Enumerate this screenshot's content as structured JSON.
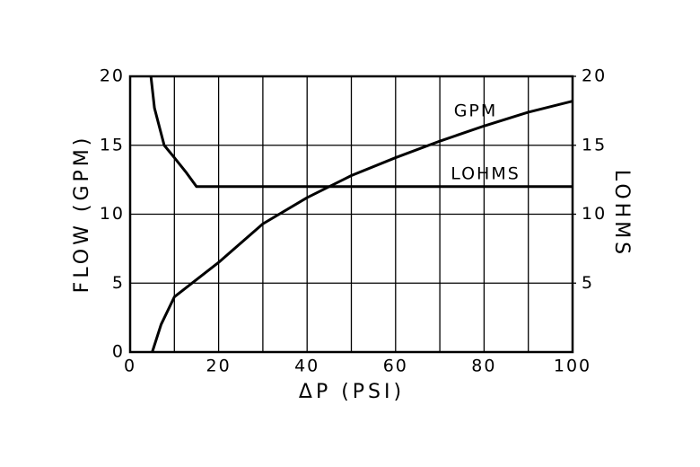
{
  "chart_data": {
    "type": "line",
    "x_label": "ΔP (PSI)",
    "y_label": "FLOW (GPM)",
    "y2_label": "LOHMS",
    "xlim": [
      0,
      100
    ],
    "xticks": [
      0,
      20,
      40,
      60,
      80,
      100
    ],
    "x_minor_grid": [
      10,
      30,
      50,
      70,
      90
    ],
    "ylim": [
      0,
      20
    ],
    "yticks": [
      0,
      5,
      10,
      15,
      20
    ],
    "y2lim": [
      0,
      20
    ],
    "y2ticks": [
      5,
      10,
      15,
      20
    ],
    "grid": true,
    "series": [
      {
        "name": "GPM",
        "color": "#000000",
        "x": [
          5,
          7,
          10,
          20,
          30,
          40,
          50,
          60,
          70,
          80,
          90,
          100
        ],
        "values": [
          0,
          2,
          4,
          6.5,
          9.3,
          11.2,
          12.8,
          14.1,
          15.3,
          16.4,
          17.4,
          18.2
        ]
      },
      {
        "name": "LOHMS",
        "color": "#000000",
        "axis": "y2",
        "x": [
          4.7,
          5.5,
          7.7,
          10,
          12.5,
          15,
          100
        ],
        "values": [
          20,
          17.7,
          15,
          14.1,
          13.1,
          12,
          12
        ]
      }
    ]
  }
}
